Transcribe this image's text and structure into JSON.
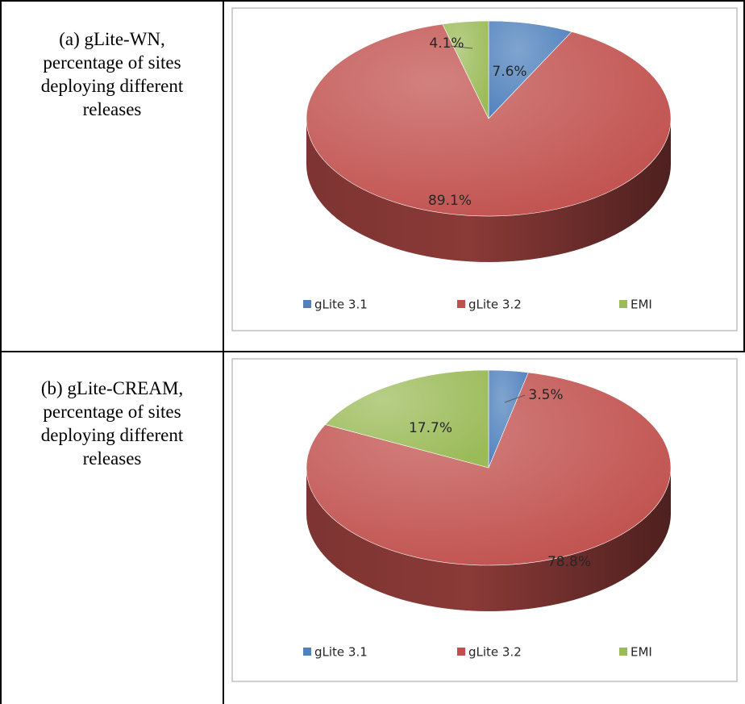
{
  "rows": [
    {
      "caption_lines": [
        "(a) gLite-WN,",
        "percentage of sites",
        "deploying different",
        "releases"
      ]
    },
    {
      "caption_lines": [
        "(b) gLite-CREAM,",
        "percentage of sites",
        "deploying different",
        "releases"
      ]
    }
  ],
  "chart_data": [
    {
      "type": "pie",
      "style": "3d",
      "title": "",
      "legend_position": "bottom",
      "categories": [
        "gLite 3.1",
        "gLite 3.2",
        "EMI"
      ],
      "values": [
        7.6,
        89.1,
        4.1
      ],
      "data_labels": [
        "7.6%",
        "89.1%",
        "4.1%"
      ],
      "colors": [
        "#4F81BD",
        "#C0504D",
        "#9BBB59"
      ]
    },
    {
      "type": "pie",
      "style": "3d",
      "title": "",
      "legend_position": "bottom",
      "categories": [
        "gLite 3.1",
        "gLite 3.2",
        "EMI"
      ],
      "values": [
        3.5,
        78.8,
        17.7
      ],
      "data_labels": [
        "3.5%",
        "78.8%",
        "17.7%"
      ],
      "colors": [
        "#4F81BD",
        "#C0504D",
        "#9BBB59"
      ]
    }
  ]
}
